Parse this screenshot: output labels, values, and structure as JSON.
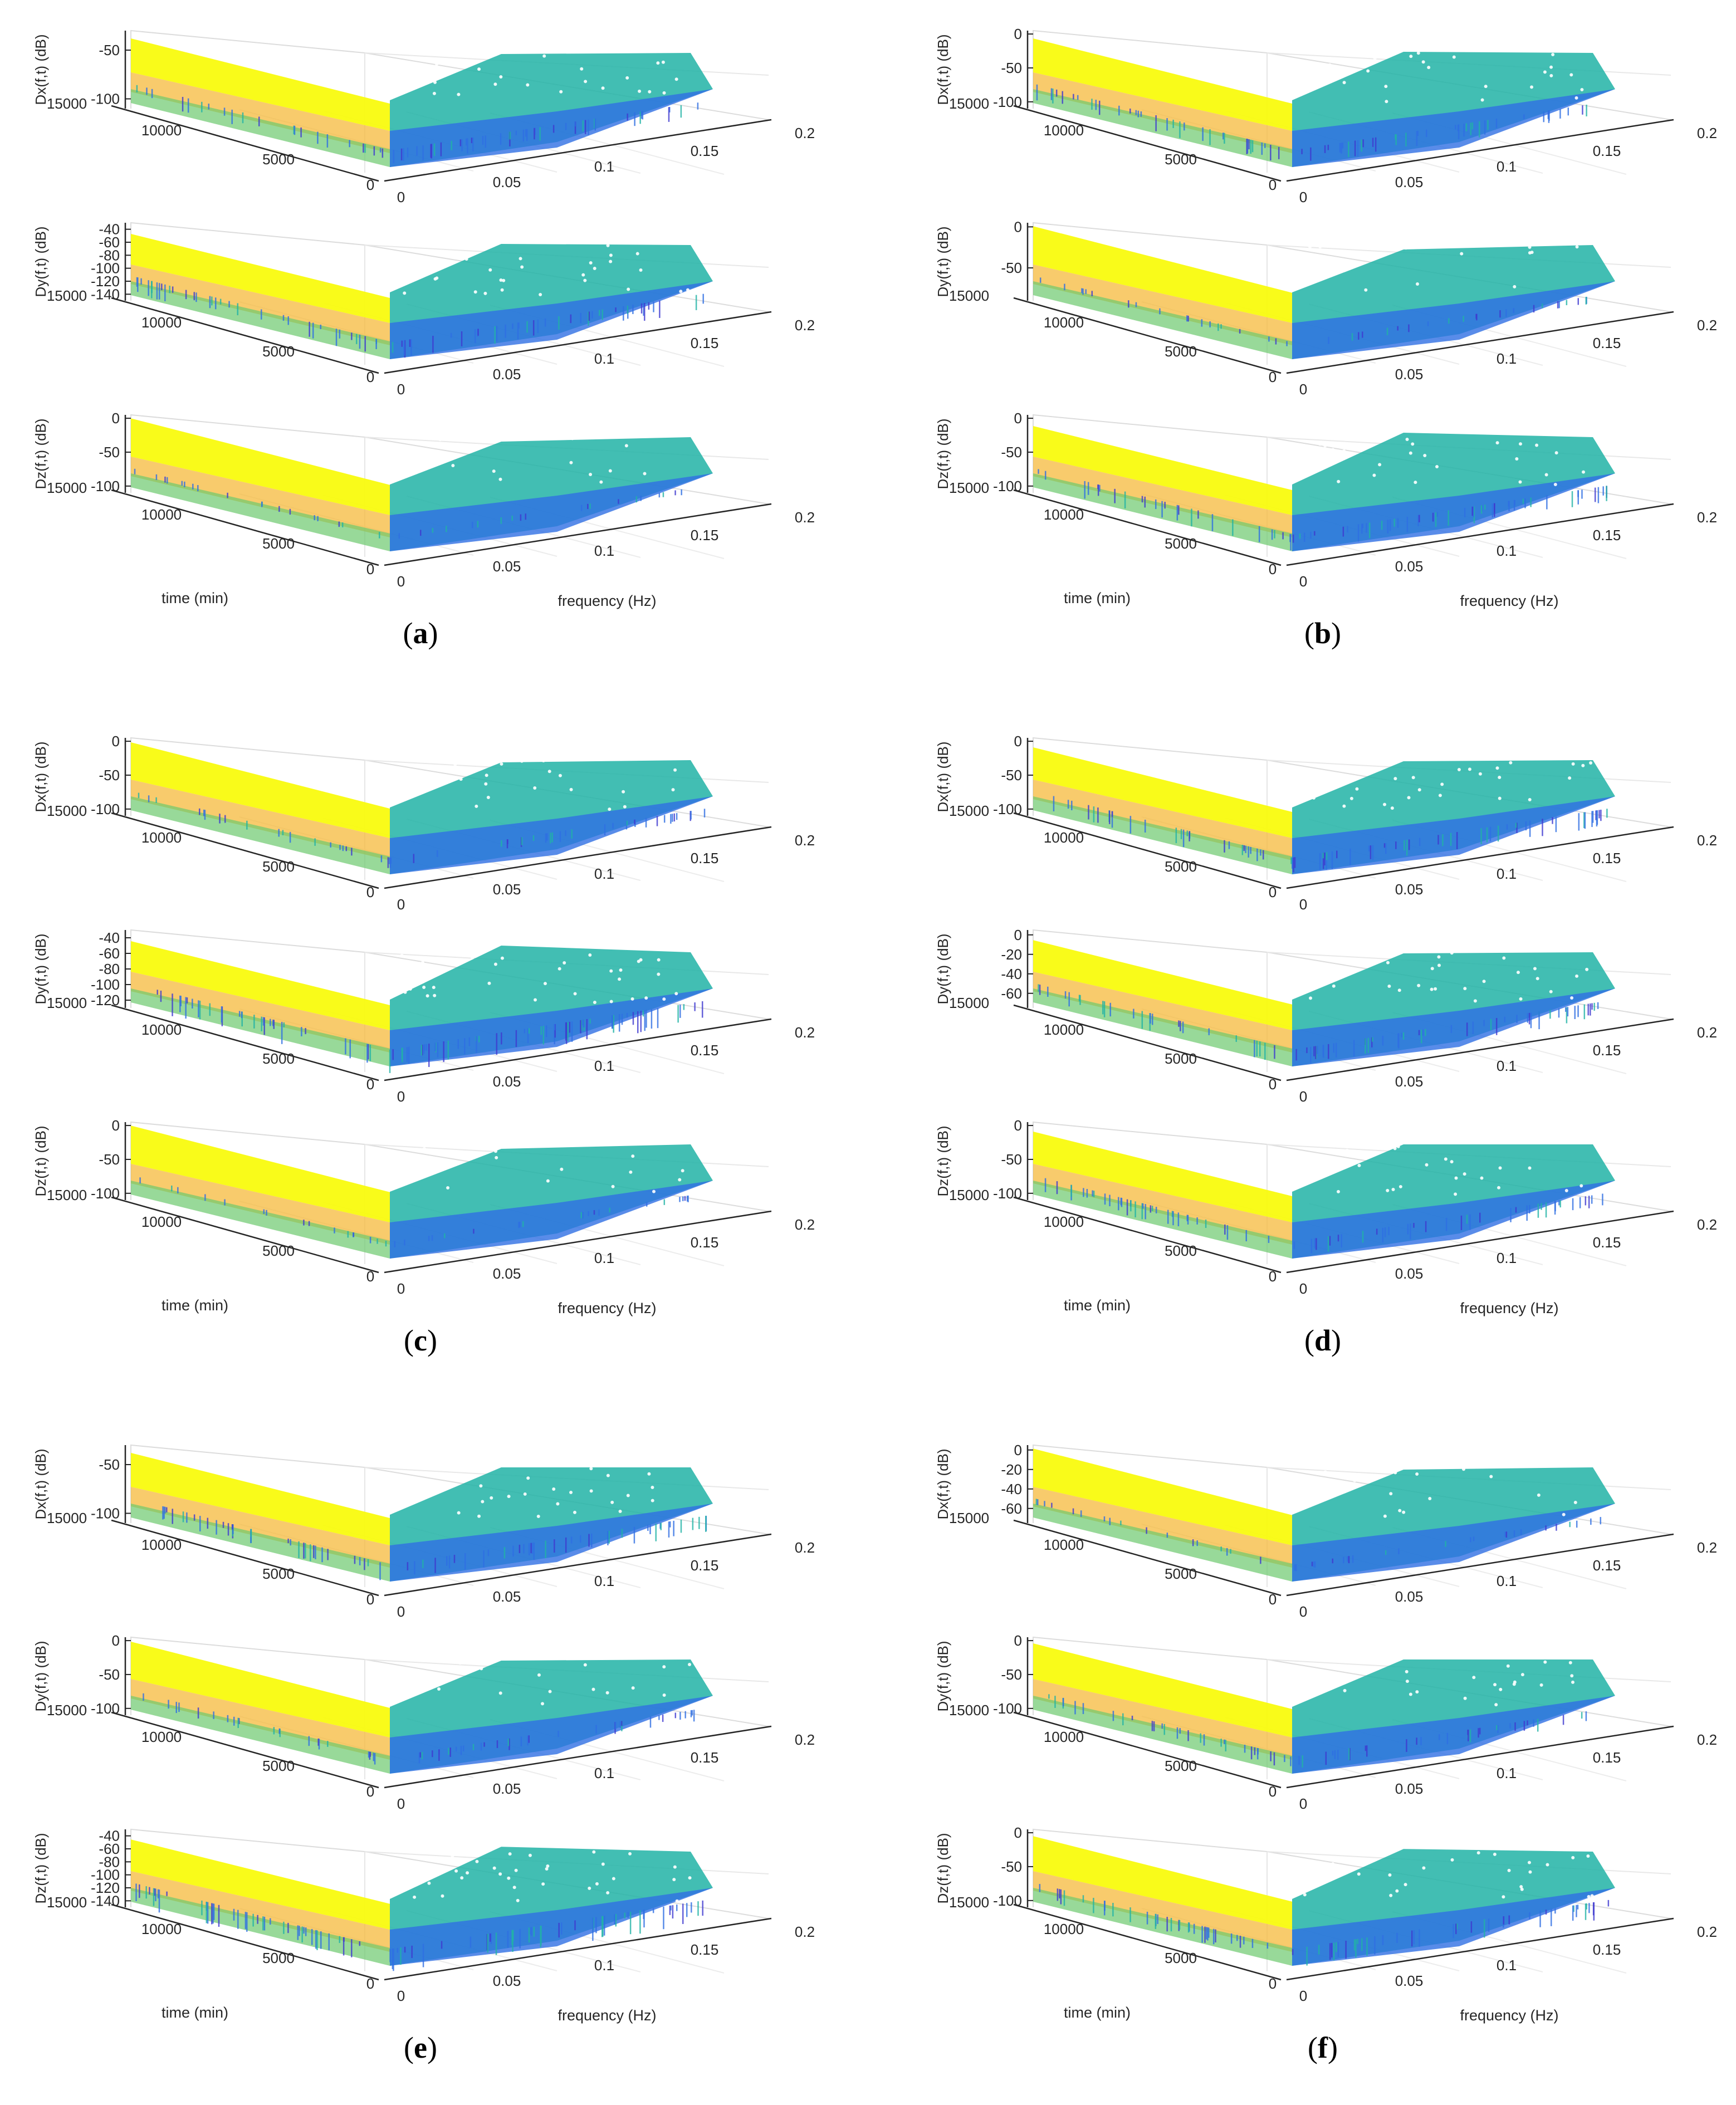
{
  "figure": {
    "panels": [
      {
        "letter": "a",
        "subplots": [
          {
            "zlabel": "Dx(f,t) (dB)",
            "zticks": [
              "-50",
              "-100"
            ],
            "zlim": [
              -110,
              -30
            ],
            "hot": 0.85,
            "cold": 0.45,
            "noise": 0.5
          },
          {
            "zlabel": "Dy(f,t) (dB)",
            "zticks": [
              "-40",
              "-60",
              "-80",
              "-100",
              "-120",
              "-140"
            ],
            "zlim": [
              -150,
              -30
            ],
            "hot": 0.75,
            "cold": 0.55,
            "noise": 0.6
          },
          {
            "zlabel": "Dz(f,t) (dB)",
            "zticks": [
              "0",
              "-50",
              "-100"
            ],
            "zlim": [
              -110,
              5
            ],
            "hot": 0.98,
            "cold": 0.3,
            "noise": 0.1
          }
        ]
      },
      {
        "letter": "b",
        "subplots": [
          {
            "zlabel": "Dx(f,t) (dB)",
            "zticks": [
              "0",
              "-50",
              "-100"
            ],
            "zlim": [
              -110,
              5
            ],
            "hot": 0.85,
            "cold": 0.55,
            "noise": 0.55
          },
          {
            "zlabel": "Dy(f,t) (dB)",
            "zticks": [
              "0",
              "-50"
            ],
            "zlim": [
              -90,
              5
            ],
            "hot": 0.98,
            "cold": 0.3,
            "noise": 0.15
          },
          {
            "zlabel": "Dz(f,t) (dB)",
            "zticks": [
              "0",
              "-50",
              "-100"
            ],
            "zlim": [
              -110,
              5
            ],
            "hot": 0.75,
            "cold": 0.7,
            "noise": 0.6
          }
        ]
      },
      {
        "letter": "c",
        "subplots": [
          {
            "zlabel": "Dx(f,t) (dB)",
            "zticks": [
              "0",
              "-50",
              "-100"
            ],
            "zlim": [
              -110,
              5
            ],
            "hot": 0.95,
            "cold": 0.4,
            "noise": 0.3
          },
          {
            "zlabel": "Dy(f,t) (dB)",
            "zticks": [
              "-40",
              "-60",
              "-80",
              "-100",
              "-120"
            ],
            "zlim": [
              -130,
              -30
            ],
            "hot": 0.75,
            "cold": 0.8,
            "noise": 0.85
          },
          {
            "zlabel": "Dz(f,t) (dB)",
            "zticks": [
              "0",
              "-50",
              "-100"
            ],
            "zlim": [
              -110,
              5
            ],
            "hot": 0.98,
            "cold": 0.3,
            "noise": 0.1
          }
        ]
      },
      {
        "letter": "d",
        "subplots": [
          {
            "zlabel": "Dx(f,t) (dB)",
            "zticks": [
              "0",
              "-50",
              "-100"
            ],
            "zlim": [
              -110,
              5
            ],
            "hot": 0.8,
            "cold": 0.45,
            "noise": 0.6
          },
          {
            "zlabel": "Dy(f,t) (dB)",
            "zticks": [
              "0",
              "-20",
              "-40",
              "-60"
            ],
            "zlim": [
              -75,
              5
            ],
            "hot": 0.78,
            "cold": 0.45,
            "noise": 0.6
          },
          {
            "zlabel": "Dz(f,t) (dB)",
            "zticks": [
              "0",
              "-50",
              "-100"
            ],
            "zlim": [
              -110,
              5
            ],
            "hot": 0.8,
            "cold": 0.5,
            "noise": 0.55
          }
        ]
      },
      {
        "letter": "e",
        "subplots": [
          {
            "zlabel": "Dx(f,t) (dB)",
            "zticks": [
              "-50",
              "-100"
            ],
            "zlim": [
              -110,
              -30
            ],
            "hot": 0.85,
            "cold": 0.5,
            "noise": 0.6
          },
          {
            "zlabel": "Dy(f,t) (dB)",
            "zticks": [
              "0",
              "-50",
              "-100"
            ],
            "zlim": [
              -110,
              5
            ],
            "hot": 0.95,
            "cold": 0.45,
            "noise": 0.35
          },
          {
            "zlabel": "Dz(f,t) (dB)",
            "zticks": [
              "-40",
              "-60",
              "-80",
              "-100",
              "-120",
              "-140"
            ],
            "zlim": [
              -150,
              -30
            ],
            "hot": 0.78,
            "cold": 0.72,
            "noise": 0.85
          }
        ]
      },
      {
        "letter": "f",
        "subplots": [
          {
            "zlabel": "Dx(f,t) (dB)",
            "zticks": [
              "0",
              "-20",
              "-40",
              "-60"
            ],
            "zlim": [
              -75,
              5
            ],
            "hot": 0.98,
            "cold": 0.4,
            "noise": 0.15
          },
          {
            "zlabel": "Dy(f,t) (dB)",
            "zticks": [
              "0",
              "-50",
              "-100"
            ],
            "zlim": [
              -110,
              5
            ],
            "hot": 0.9,
            "cold": 0.5,
            "noise": 0.4
          },
          {
            "zlabel": "Dz(f,t) (dB)",
            "zticks": [
              "0",
              "-50",
              "-100"
            ],
            "zlim": [
              -110,
              5
            ],
            "hot": 0.88,
            "cold": 0.62,
            "noise": 0.65
          }
        ]
      }
    ]
  },
  "chart_data": {
    "type": "surface",
    "description_axes": "3D spectrogram surfaces: time (min) vs frequency (Hz) vs D(f,t) (dB)",
    "time_axis": {
      "label": "time (min)",
      "ticks": [
        "15000",
        "10000",
        "5000",
        "0"
      ],
      "lim": [
        0,
        15000
      ]
    },
    "frequency_axis": {
      "label": "frequency (Hz)",
      "ticks": [
        "0",
        "0.05",
        "0.1",
        "0.15",
        "0.2"
      ],
      "lim": [
        0,
        0.2
      ]
    },
    "colormap": "parula",
    "colors": {
      "yellow": "#f9fb0e",
      "orange": "#f6b93b",
      "green": "#6cc96e",
      "teal": "#21b3a6",
      "blue": "#2f6fe3",
      "deepblue": "#3f3ad0"
    }
  }
}
